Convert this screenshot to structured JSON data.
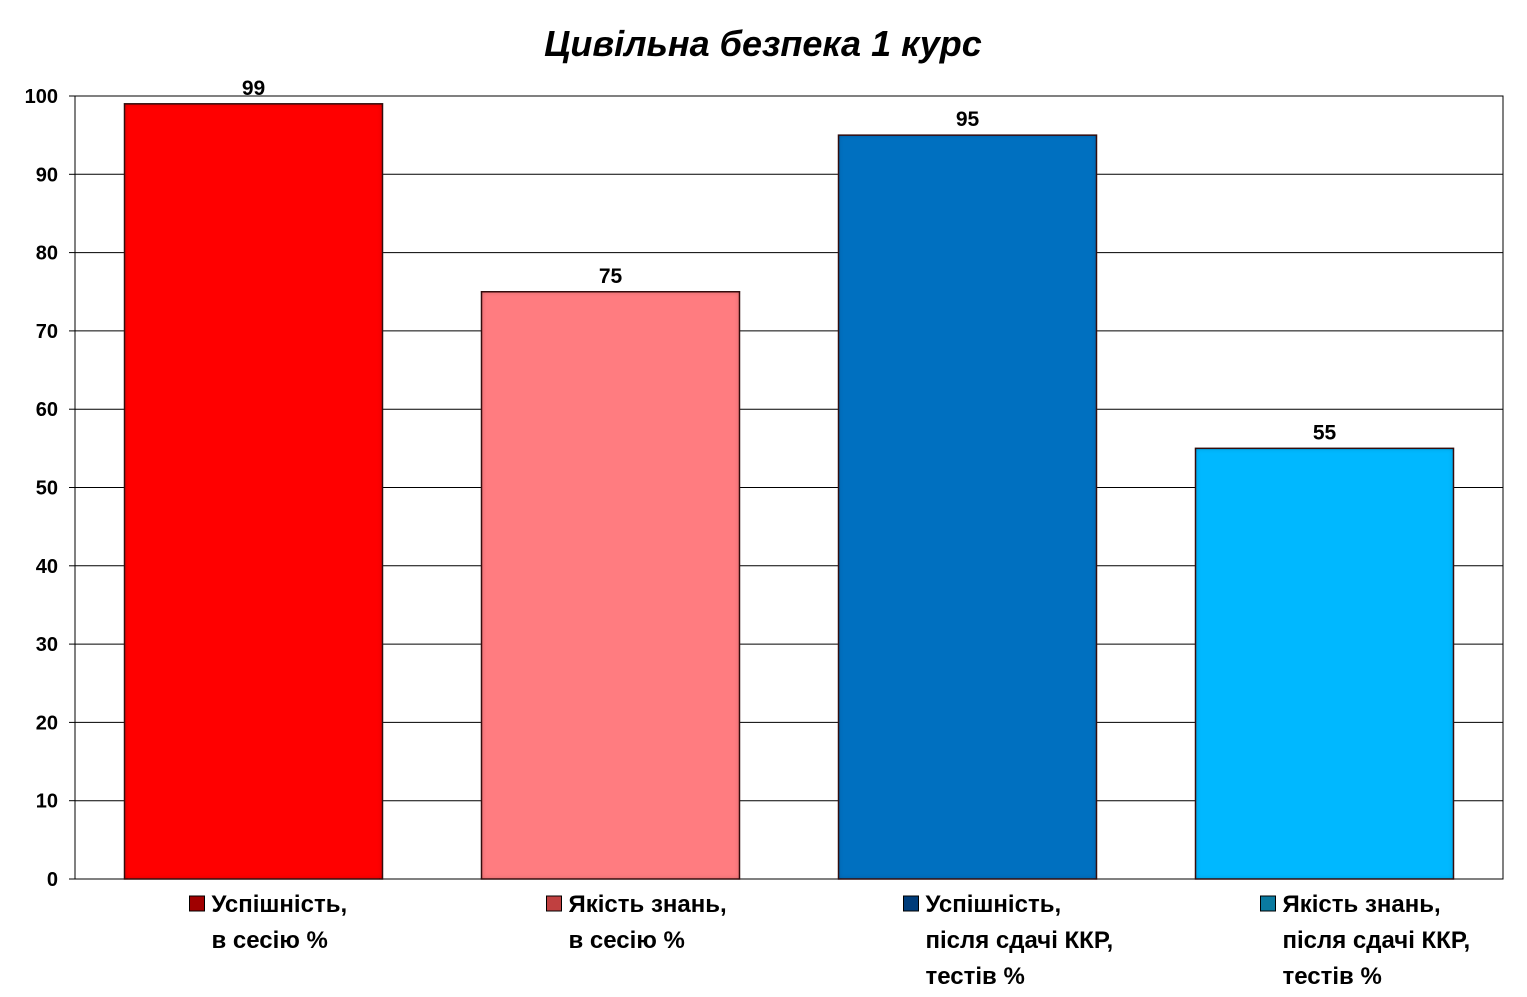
{
  "chart_data": {
    "type": "bar",
    "title": "Цивільна безпека 1 курс",
    "xlabel": "",
    "ylabel": "",
    "ylim": [
      0,
      100
    ],
    "yticks": [
      0,
      10,
      20,
      30,
      40,
      50,
      60,
      70,
      80,
      90,
      100
    ],
    "grid": true,
    "legend_position": "bottom",
    "categories": [
      "Успішність, в сесію %",
      "Якість знань, в сесію %",
      "Успішність, після сдачі ККР, тестів %",
      "Якість знань, після сдачі ККР, тестів %"
    ],
    "values": [
      99,
      75,
      95,
      55
    ],
    "data_labels": [
      "99",
      "75",
      "95",
      "55"
    ],
    "colors": [
      "#ff0000",
      "#ff7c80",
      "#0070c0",
      "#00b8ff"
    ],
    "legend": [
      {
        "lines": [
          "Успішність,",
          "в сесію %"
        ],
        "color": "#ff0000",
        "swatch": "#a00000"
      },
      {
        "lines": [
          "Якість знань,",
          "в сесію %"
        ],
        "color": "#ff7c80",
        "swatch": "#c04040"
      },
      {
        "lines": [
          "Успішність,",
          "після сдачі ККР,",
          "тестів %"
        ],
        "color": "#0070c0",
        "swatch": "#003c7a"
      },
      {
        "lines": [
          "Якість знань,",
          "після сдачі ККР,",
          "тестів %"
        ],
        "color": "#00b8ff",
        "swatch": "#0a7aa0"
      }
    ]
  }
}
